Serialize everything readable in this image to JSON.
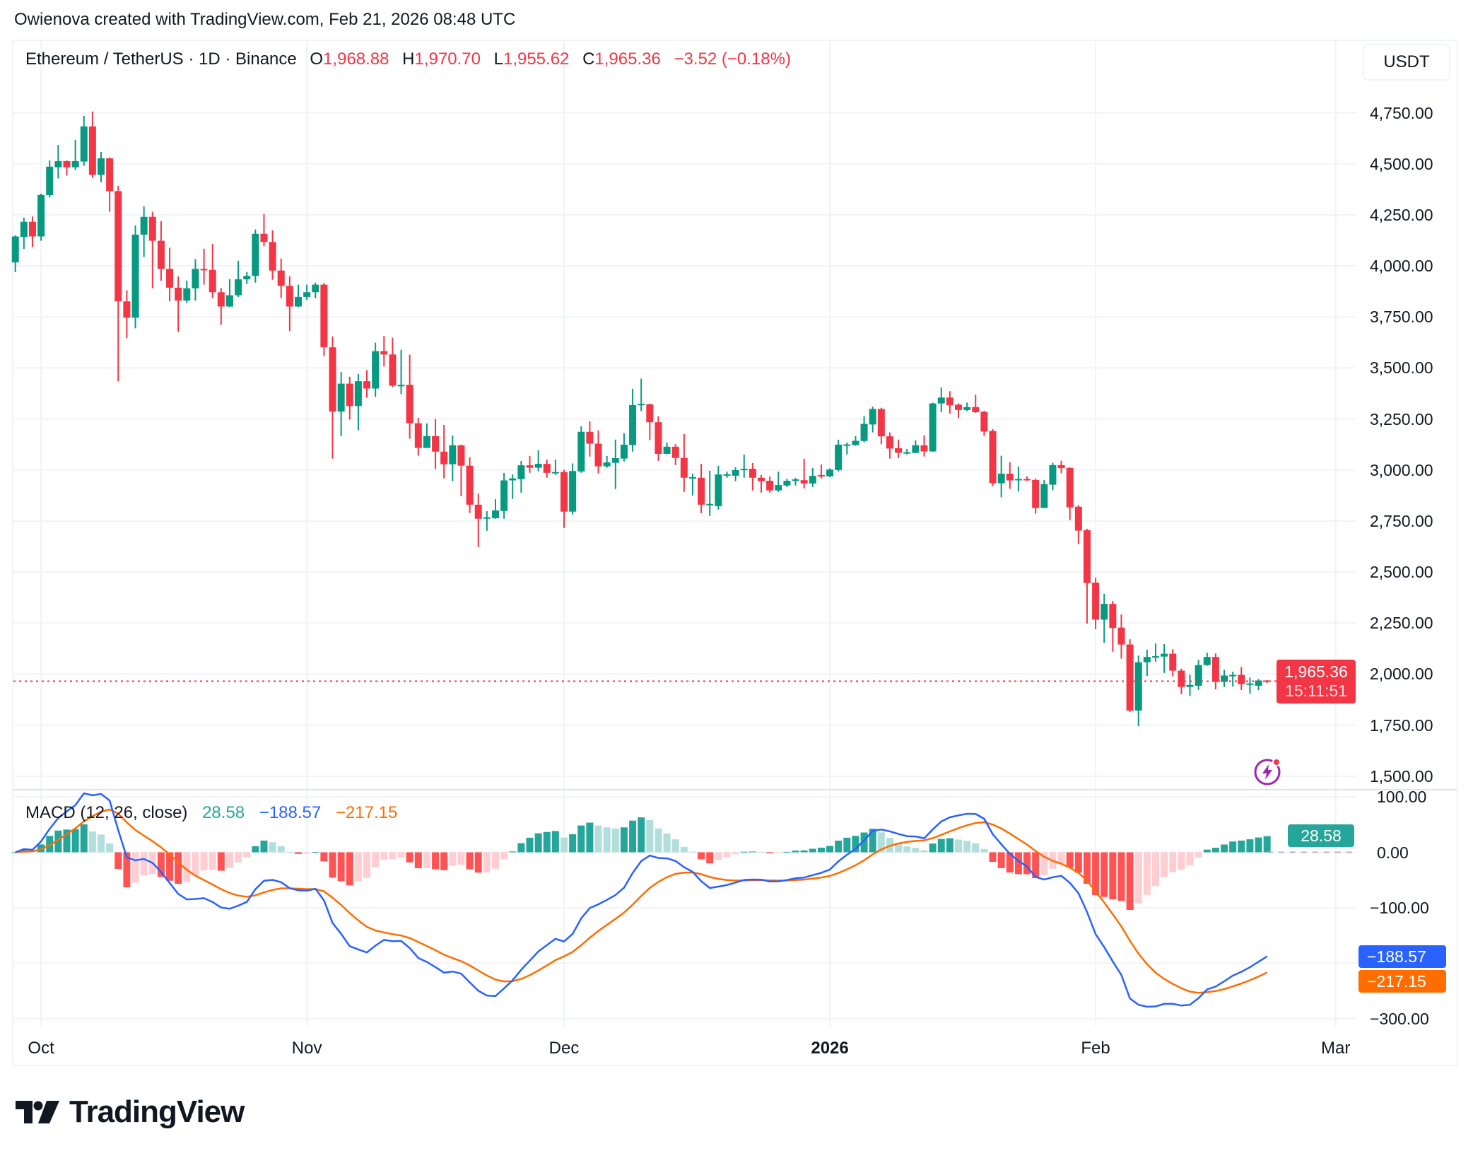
{
  "credit": "Owienova created with TradingView.com, Feb 21, 2026 08:48 UTC",
  "legend": {
    "symbol": "Ethereum / TetherUS · 1D · Binance",
    "o_label": "O",
    "o": "1,968.88",
    "h_label": "H",
    "h": "1,970.70",
    "l_label": "L",
    "l": "1,955.62",
    "c_label": "C",
    "c": "1,965.36",
    "change": "−3.52 (−0.18%)"
  },
  "currency_button": "USDT",
  "price_badge": {
    "price": "1,965.36",
    "countdown": "15:11:51"
  },
  "macd_legend": {
    "title": "MACD (12, 26, close)",
    "hist": "28.58",
    "macd": "−188.57",
    "signal": "−217.15"
  },
  "macd_badges": {
    "hist": "28.58",
    "macd": "−188.57",
    "signal": "−217.15"
  },
  "colors": {
    "up": "#089981",
    "down": "#f23645",
    "macd": "#2962ff",
    "signal": "#ff6d00",
    "hist_up_strong": "#26a69a",
    "hist_up_weak": "#b2dfdb",
    "hist_down_strong": "#ff5252",
    "hist_down_weak": "#ffcdd2",
    "alert_icon": "#9c27b0"
  },
  "icons": {
    "alert": "lightning-bolt-icon",
    "logo": "tradingview-logo"
  },
  "brand": "TradingView",
  "chart_data": [
    {
      "type": "candlestick",
      "title": "Ethereum / TetherUS · 1D · Binance",
      "ylim": [
        1500,
        4750
      ],
      "grid": true,
      "price_ticks": [
        "4,750.00",
        "4,500.00",
        "4,250.00",
        "4,000.00",
        "3,750.00",
        "3,500.00",
        "3,250.00",
        "3,000.00",
        "2,750.00",
        "2,500.00",
        "2,250.00",
        "2,000.00",
        "1,750.00",
        "1,500.00"
      ],
      "price_tick_values": [
        4750,
        4500,
        4250,
        4000,
        3750,
        3500,
        3250,
        3000,
        2750,
        2500,
        2250,
        2000,
        1750,
        1500
      ],
      "time_ticks": [
        {
          "label": "Oct",
          "date": "2025-10-01",
          "bold": false
        },
        {
          "label": "Nov",
          "date": "2025-11-01",
          "bold": false
        },
        {
          "label": "Dec",
          "date": "2025-12-01",
          "bold": false
        },
        {
          "label": "2026",
          "date": "2026-01-01",
          "bold": true
        },
        {
          "label": "Feb",
          "date": "2026-02-01",
          "bold": false
        },
        {
          "label": "Mar",
          "date": "2026-03-01",
          "bold": false
        }
      ],
      "last_price": 1965.36,
      "columns": [
        "date",
        "open",
        "high",
        "low",
        "close"
      ],
      "candles": [
        [
          "2025-09-28",
          4017,
          4150,
          3969,
          4144
        ],
        [
          "2025-09-29",
          4142,
          4236,
          4083,
          4216
        ],
        [
          "2025-09-30",
          4216,
          4242,
          4092,
          4144
        ],
        [
          "2025-10-01",
          4144,
          4354,
          4123,
          4347
        ],
        [
          "2025-10-02",
          4346,
          4517,
          4335,
          4486
        ],
        [
          "2025-10-03",
          4483,
          4592,
          4428,
          4513
        ],
        [
          "2025-10-04",
          4513,
          4517,
          4442,
          4483
        ],
        [
          "2025-10-05",
          4483,
          4617,
          4470,
          4513
        ],
        [
          "2025-10-06",
          4511,
          4735,
          4490,
          4683
        ],
        [
          "2025-10-07",
          4683,
          4756,
          4431,
          4446
        ],
        [
          "2025-10-08",
          4446,
          4558,
          4410,
          4527
        ],
        [
          "2025-10-09",
          4527,
          4531,
          4265,
          4366
        ],
        [
          "2025-10-10",
          4366,
          4392,
          3434,
          3826
        ],
        [
          "2025-10-11",
          3826,
          3880,
          3646,
          3746
        ],
        [
          "2025-10-12",
          3746,
          4198,
          3694,
          4153
        ],
        [
          "2025-10-13",
          4153,
          4292,
          4044,
          4240
        ],
        [
          "2025-10-14",
          4240,
          4265,
          3890,
          4123
        ],
        [
          "2025-10-15",
          4123,
          4219,
          3927,
          3985
        ],
        [
          "2025-10-16",
          3985,
          4089,
          3826,
          3893
        ],
        [
          "2025-10-17",
          3893,
          3948,
          3677,
          3830
        ],
        [
          "2025-10-18",
          3830,
          3928,
          3819,
          3890
        ],
        [
          "2025-10-19",
          3890,
          4033,
          3830,
          3985
        ],
        [
          "2025-10-20",
          3985,
          4084,
          3908,
          3983
        ],
        [
          "2025-10-21",
          3980,
          4108,
          3842,
          3871
        ],
        [
          "2025-10-22",
          3871,
          3891,
          3711,
          3801
        ],
        [
          "2025-10-23",
          3801,
          3935,
          3798,
          3856
        ],
        [
          "2025-10-24",
          3856,
          4025,
          3848,
          3934
        ],
        [
          "2025-10-25",
          3934,
          3970,
          3911,
          3951
        ],
        [
          "2025-10-26",
          3951,
          4178,
          3918,
          4157
        ],
        [
          "2025-10-27",
          4157,
          4254,
          4096,
          4117
        ],
        [
          "2025-10-28",
          4117,
          4174,
          3932,
          3977
        ],
        [
          "2025-10-29",
          3977,
          4036,
          3842,
          3902
        ],
        [
          "2025-10-30",
          3902,
          3949,
          3680,
          3801
        ],
        [
          "2025-10-31",
          3801,
          3908,
          3798,
          3848
        ],
        [
          "2025-11-01",
          3848,
          3908,
          3833,
          3871
        ],
        [
          "2025-11-02",
          3871,
          3918,
          3841,
          3908
        ],
        [
          "2025-11-03",
          3908,
          3916,
          3559,
          3601
        ],
        [
          "2025-11-04",
          3601,
          3654,
          3056,
          3286
        ],
        [
          "2025-11-05",
          3286,
          3480,
          3167,
          3423
        ],
        [
          "2025-11-06",
          3423,
          3457,
          3247,
          3313
        ],
        [
          "2025-11-07",
          3313,
          3470,
          3195,
          3435
        ],
        [
          "2025-11-08",
          3435,
          3489,
          3354,
          3399
        ],
        [
          "2025-11-09",
          3399,
          3624,
          3358,
          3582
        ],
        [
          "2025-11-10",
          3582,
          3657,
          3507,
          3566
        ],
        [
          "2025-11-11",
          3566,
          3648,
          3406,
          3413
        ],
        [
          "2025-11-12",
          3413,
          3589,
          3372,
          3417
        ],
        [
          "2025-11-13",
          3417,
          3565,
          3153,
          3229
        ],
        [
          "2025-11-14",
          3229,
          3256,
          3070,
          3108
        ],
        [
          "2025-11-15",
          3108,
          3228,
          3108,
          3166
        ],
        [
          "2025-11-16",
          3166,
          3249,
          3004,
          3090
        ],
        [
          "2025-11-17",
          3090,
          3221,
          2959,
          3028
        ],
        [
          "2025-11-18",
          3028,
          3169,
          2945,
          3121
        ],
        [
          "2025-11-19",
          3121,
          3124,
          2872,
          3021
        ],
        [
          "2025-11-20",
          3021,
          3062,
          2789,
          2830
        ],
        [
          "2025-11-21",
          2830,
          2885,
          2622,
          2761
        ],
        [
          "2025-11-22",
          2761,
          2798,
          2702,
          2768
        ],
        [
          "2025-11-23",
          2764,
          2857,
          2761,
          2802
        ],
        [
          "2025-11-24",
          2799,
          2985,
          2761,
          2949
        ],
        [
          "2025-11-25",
          2949,
          2978,
          2858,
          2959
        ],
        [
          "2025-11-26",
          2955,
          3044,
          2889,
          3023
        ],
        [
          "2025-11-27",
          3023,
          3069,
          2986,
          3011
        ],
        [
          "2025-11-28",
          3011,
          3096,
          2993,
          3030
        ],
        [
          "2025-11-29",
          3030,
          3051,
          2962,
          2986
        ],
        [
          "2025-11-30",
          2986,
          3051,
          2976,
          2990
        ],
        [
          "2025-12-01",
          2990,
          3000,
          2716,
          2796
        ],
        [
          "2025-12-02",
          2796,
          3032,
          2782,
          2995
        ],
        [
          "2025-12-03",
          2993,
          3214,
          2986,
          3187
        ],
        [
          "2025-12-04",
          3187,
          3239,
          3066,
          3129
        ],
        [
          "2025-12-05",
          3129,
          3194,
          2983,
          3018
        ],
        [
          "2025-12-06",
          3018,
          3069,
          3011,
          3037
        ],
        [
          "2025-12-07",
          3035,
          3149,
          2907,
          3058
        ],
        [
          "2025-12-08",
          3056,
          3180,
          3042,
          3124
        ],
        [
          "2025-12-09",
          3122,
          3398,
          3090,
          3318
        ],
        [
          "2025-12-10",
          3318,
          3447,
          3288,
          3324
        ],
        [
          "2025-12-11",
          3322,
          3325,
          3146,
          3234
        ],
        [
          "2025-12-12",
          3234,
          3263,
          3045,
          3079
        ],
        [
          "2025-12-13",
          3079,
          3134,
          3077,
          3114
        ],
        [
          "2025-12-14",
          3114,
          3127,
          3024,
          3059
        ],
        [
          "2025-12-15",
          3059,
          3176,
          2893,
          2962
        ],
        [
          "2025-12-16",
          2962,
          2982,
          2875,
          2965
        ],
        [
          "2025-12-17",
          2962,
          3030,
          2788,
          2830
        ],
        [
          "2025-12-18",
          2830,
          2996,
          2775,
          2834
        ],
        [
          "2025-12-19",
          2823,
          3020,
          2806,
          2978
        ],
        [
          "2025-12-20",
          2978,
          2992,
          2962,
          2979
        ],
        [
          "2025-12-21",
          2972,
          3013,
          2945,
          2999
        ],
        [
          "2025-12-22",
          2999,
          3075,
          2962,
          3006
        ],
        [
          "2025-12-23",
          3006,
          3034,
          2900,
          2962
        ],
        [
          "2025-12-24",
          2962,
          2976,
          2889,
          2945
        ],
        [
          "2025-12-25",
          2947,
          2968,
          2889,
          2900
        ],
        [
          "2025-12-26",
          2900,
          2992,
          2893,
          2926
        ],
        [
          "2025-12-27",
          2924,
          2957,
          2917,
          2947
        ],
        [
          "2025-12-28",
          2949,
          2961,
          2924,
          2954
        ],
        [
          "2025-12-29",
          2950,
          3055,
          2910,
          2934
        ],
        [
          "2025-12-30",
          2934,
          3010,
          2917,
          2971
        ],
        [
          "2025-12-31",
          2975,
          3027,
          2959,
          2972
        ],
        [
          "2026-01-01",
          2969,
          3008,
          2965,
          3002
        ],
        [
          "2026-01-02",
          3000,
          3148,
          2993,
          3124
        ],
        [
          "2026-01-03",
          3125,
          3134,
          3076,
          3125
        ],
        [
          "2026-01-04",
          3122,
          3166,
          3119,
          3143
        ],
        [
          "2026-01-05",
          3142,
          3264,
          3136,
          3226
        ],
        [
          "2026-01-06",
          3223,
          3310,
          3184,
          3299
        ],
        [
          "2026-01-07",
          3299,
          3305,
          3126,
          3165
        ],
        [
          "2026-01-08",
          3165,
          3184,
          3056,
          3105
        ],
        [
          "2026-01-09",
          3107,
          3149,
          3058,
          3084
        ],
        [
          "2026-01-10",
          3087,
          3103,
          3076,
          3087
        ],
        [
          "2026-01-11",
          3084,
          3145,
          3082,
          3121
        ],
        [
          "2026-01-12",
          3121,
          3170,
          3066,
          3091
        ],
        [
          "2026-01-13",
          3091,
          3330,
          3088,
          3326
        ],
        [
          "2026-01-14",
          3326,
          3404,
          3283,
          3355
        ],
        [
          "2026-01-15",
          3355,
          3386,
          3276,
          3317
        ],
        [
          "2026-01-16",
          3320,
          3326,
          3255,
          3294
        ],
        [
          "2026-01-17",
          3294,
          3330,
          3288,
          3308
        ],
        [
          "2026-01-18",
          3308,
          3369,
          3280,
          3283
        ],
        [
          "2026-01-19",
          3285,
          3290,
          3167,
          3188
        ],
        [
          "2026-01-20",
          3191,
          3200,
          2921,
          2935
        ],
        [
          "2026-01-21",
          2935,
          3070,
          2866,
          2982
        ],
        [
          "2026-01-22",
          2982,
          3038,
          2908,
          2949
        ],
        [
          "2026-01-23",
          2956,
          3017,
          2894,
          2956
        ],
        [
          "2026-01-24",
          2956,
          2969,
          2947,
          2954
        ],
        [
          "2026-01-25",
          2951,
          2958,
          2786,
          2814
        ],
        [
          "2026-01-26",
          2814,
          2951,
          2814,
          2931
        ],
        [
          "2026-01-27",
          2928,
          3035,
          2901,
          3024
        ],
        [
          "2026-01-28",
          3024,
          3045,
          2984,
          3009
        ],
        [
          "2026-01-29",
          3010,
          3013,
          2755,
          2817
        ],
        [
          "2026-01-30",
          2820,
          2828,
          2637,
          2703
        ],
        [
          "2026-01-31",
          2705,
          2712,
          2247,
          2446
        ],
        [
          "2026-02-01",
          2448,
          2472,
          2220,
          2267
        ],
        [
          "2026-02-02",
          2267,
          2393,
          2153,
          2344
        ],
        [
          "2026-02-03",
          2344,
          2358,
          2110,
          2226
        ],
        [
          "2026-02-04",
          2228,
          2292,
          2076,
          2145
        ],
        [
          "2026-02-05",
          2145,
          2171,
          1815,
          1821
        ],
        [
          "2026-02-06",
          1821,
          2091,
          1745,
          2058
        ],
        [
          "2026-02-07",
          2058,
          2120,
          1991,
          2084
        ],
        [
          "2026-02-08",
          2084,
          2150,
          2061,
          2088
        ],
        [
          "2026-02-09",
          2086,
          2147,
          2006,
          2100
        ],
        [
          "2026-02-10",
          2100,
          2122,
          1989,
          2017
        ],
        [
          "2026-02-11",
          2017,
          2027,
          1902,
          1937
        ],
        [
          "2026-02-12",
          1937,
          1997,
          1894,
          1947
        ],
        [
          "2026-02-13",
          1943,
          2070,
          1923,
          2044
        ],
        [
          "2026-02-14",
          2044,
          2105,
          2041,
          2084
        ],
        [
          "2026-02-15",
          2084,
          2101,
          1925,
          1962
        ],
        [
          "2026-02-16",
          1962,
          2021,
          1937,
          1993
        ],
        [
          "2026-02-17",
          1993,
          2012,
          1939,
          1996
        ],
        [
          "2026-02-18",
          1996,
          2035,
          1922,
          1951
        ],
        [
          "2026-02-19",
          1951,
          1983,
          1904,
          1954
        ],
        [
          "2026-02-20",
          1943,
          1976,
          1922,
          1968.88
        ],
        [
          "2026-02-21",
          1968.88,
          1970.7,
          1955.62,
          1965.36
        ]
      ]
    },
    {
      "type": "macd",
      "params": {
        "fast": 12,
        "slow": 26,
        "source": "close",
        "signal": 9
      },
      "ylim": [
        -300,
        100
      ],
      "ticks": [
        "100.00",
        "0.00",
        "−100.00",
        "−300.00"
      ],
      "tick_values": [
        100,
        0,
        -100,
        -300
      ],
      "grid_values": [
        100,
        0,
        -100,
        -200,
        -300
      ],
      "last": {
        "histogram": 28.58,
        "macd": -188.57,
        "signal": -217.15
      }
    }
  ]
}
